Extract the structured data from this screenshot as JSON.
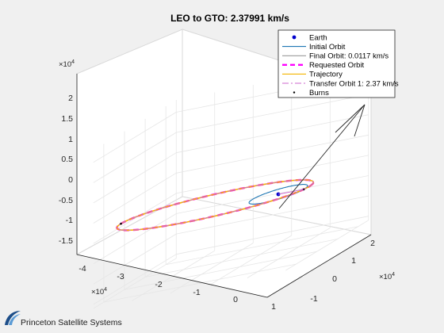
{
  "chart_data": {
    "type": "line",
    "title": "LEO to GTO: 2.37991 km/s",
    "axis_exponent_label": "x 10^4",
    "x_ticks": [
      "-4",
      "-3",
      "-2",
      "-1",
      "0",
      "1"
    ],
    "y_ticks": [
      "-1",
      "0",
      "1",
      "2"
    ],
    "z_ticks": [
      "-1.5",
      "-1",
      "-0.5",
      "0",
      "0.5",
      "1",
      "1.5",
      "2"
    ],
    "xlim": [
      -4,
      1
    ],
    "ylim": [
      -1.5,
      2.5
    ],
    "zlim": [
      -1.6,
      2.3
    ],
    "grid": true,
    "legend_position": "top-right",
    "legend": [
      {
        "label": "Earth",
        "color": "#0000cc",
        "style": "dot"
      },
      {
        "label": "Initial Orbit",
        "color": "#1f77b4",
        "style": "solid"
      },
      {
        "label": "Final Orbit: 0.0117 km/s",
        "color": "#4d4d4d",
        "style": "thin"
      },
      {
        "label": "Requested Orbit",
        "color": "#ff00ff",
        "style": "dashed-thick"
      },
      {
        "label": "Trajectory",
        "color": "#f4b400",
        "style": "solid"
      },
      {
        "label": "Transfer Orbit 1: 2.37 km/s",
        "color": "#cc66cc",
        "style": "dashdot"
      },
      {
        "label": "Burns",
        "color": "#000000",
        "style": "dot-small"
      }
    ],
    "series": [
      {
        "name": "Earth",
        "points": [
          [
            0,
            0,
            0
          ]
        ]
      },
      {
        "name": "Initial Orbit",
        "orbit": {
          "cx": 0,
          "cy": 0,
          "radius": 0.67,
          "units": "x10^4 km"
        }
      },
      {
        "name": "Final Orbit: 0.0117 km/s",
        "orbit": {
          "cx": -1.75,
          "cy": 0.2,
          "a": 2.45,
          "b": 1.35,
          "units": "x10^4 km"
        }
      },
      {
        "name": "Requested Orbit",
        "orbit": {
          "cx": -1.75,
          "cy": 0.2,
          "a": 2.45,
          "b": 1.35,
          "units": "x10^4 km"
        }
      },
      {
        "name": "Trajectory",
        "orbit": {
          "cx": -1.75,
          "cy": 0.2,
          "a": 2.45,
          "b": 1.35,
          "units": "x10^4 km"
        }
      },
      {
        "name": "Transfer Orbit 1: 2.37 km/s",
        "orbit": {
          "cx": -1.75,
          "cy": 0.2,
          "a": 2.45,
          "b": 1.35,
          "units": "x10^4 km"
        }
      },
      {
        "name": "Burns",
        "points": [
          [
            0.67,
            -0.02,
            0
          ],
          [
            -4.2,
            0.2,
            0
          ]
        ]
      }
    ]
  },
  "branding": {
    "company": "Princeton Satellite Systems",
    "logo_colors": [
      "#1d4e89",
      "#5b9bd5"
    ]
  }
}
